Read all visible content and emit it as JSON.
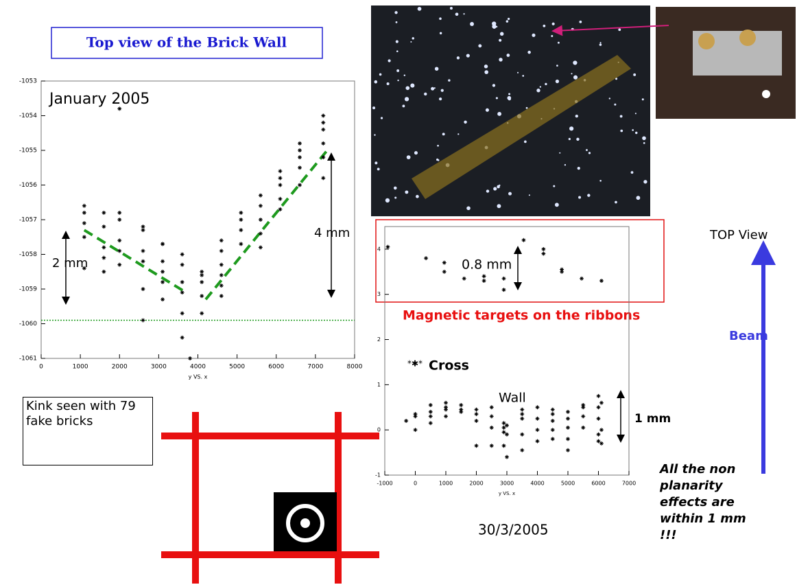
{
  "notes": {
    "title": "Top view of the Brick Wall",
    "two_mm": "2 mm",
    "four_mm": "4 mm",
    "zero_eight_mm": "0.8 mm",
    "magnetic": "Magnetic targets on the ribbons",
    "cross": "Cross",
    "wall": "Wall",
    "one_mm": "1 mm",
    "top_view": "TOP View",
    "beam": "Beam",
    "conclusion": "All the non planarity effects are within 1 mm !!!",
    "kink": "Kink seen with 79 fake bricks",
    "date": "30/3/2005"
  },
  "chart_data": [
    {
      "type": "scatter",
      "title": "January 2005",
      "x_label": "y VS. x",
      "color": "#000000",
      "x": [
        1100,
        1100,
        1100,
        1100,
        1100,
        1600,
        1600,
        1600,
        1600,
        1600,
        2000,
        2000,
        2000,
        2000,
        2000,
        2000,
        2600,
        2600,
        2600,
        2600,
        2600,
        2600,
        3100,
        3100,
        3100,
        3100,
        3100,
        3100,
        3600,
        3600,
        3600,
        3600,
        3600,
        3600,
        4100,
        4100,
        4100,
        4100,
        4100,
        4600,
        4600,
        4600,
        4600,
        4600,
        4600,
        5100,
        5100,
        5100,
        5100,
        5600,
        5600,
        5600,
        5600,
        5600,
        6100,
        6100,
        6100,
        6100,
        6100,
        6600,
        6600,
        6600,
        6600,
        6600,
        7200,
        7200,
        7200,
        7200,
        7200,
        7200,
        3800
      ],
      "values": [
        -1056.6,
        -1056.8,
        -1057.1,
        -1057.5,
        -1058.4,
        -1056.8,
        -1057.2,
        -1057.8,
        -1058.1,
        -1058.5,
        -1053.8,
        -1056.8,
        -1057.0,
        -1057.6,
        -1057.9,
        -1058.3,
        -1057.2,
        -1057.3,
        -1057.9,
        -1058.2,
        -1059.0,
        -1059.9,
        -1057.7,
        -1057.7,
        -1058.2,
        -1058.5,
        -1058.8,
        -1059.3,
        -1058.0,
        -1058.3,
        -1058.8,
        -1059.1,
        -1059.7,
        -1060.4,
        -1058.5,
        -1058.6,
        -1058.8,
        -1059.2,
        -1059.7,
        -1057.6,
        -1057.9,
        -1058.3,
        -1058.6,
        -1058.9,
        -1059.2,
        -1056.8,
        -1057.0,
        -1057.3,
        -1057.7,
        -1056.3,
        -1056.6,
        -1057.0,
        -1057.4,
        -1057.8,
        -1055.6,
        -1055.8,
        -1056.0,
        -1056.4,
        -1056.7,
        -1054.8,
        -1055.0,
        -1055.2,
        -1055.5,
        -1056.0,
        -1054.0,
        -1054.2,
        -1054.4,
        -1054.8,
        -1055.2,
        -1055.8,
        -1061.0
      ],
      "fit_lines": [
        {
          "x": [
            1100,
            3700
          ],
          "values": [
            -1057.3,
            -1059.1
          ]
        },
        {
          "x": [
            4200,
            7300
          ],
          "values": [
            -1059.3,
            -1055.0
          ]
        }
      ],
      "fit_color": "#1e9a1e",
      "reference_line": -1059.9,
      "reference_color": "#1e9a1e",
      "xlim": [
        0,
        8000
      ],
      "ylim": [
        -1061,
        -1053
      ],
      "xticks": [
        0,
        1000,
        2000,
        3000,
        4000,
        5000,
        6000,
        7000,
        8000
      ],
      "yticks": [
        -1061,
        -1060,
        -1059,
        -1058,
        -1057,
        -1056,
        -1055,
        -1054,
        -1053
      ]
    },
    {
      "type": "scatter",
      "x_label": "y VS. x",
      "color": "#000000",
      "x": [
        -900,
        350,
        950,
        950,
        1600,
        2250,
        2250,
        2900,
        2900,
        3550,
        4200,
        4200,
        4800,
        4800,
        5450,
        6100,
        -300,
        0,
        0,
        0,
        500,
        500,
        500,
        500,
        1000,
        1000,
        1000,
        1000,
        1500,
        1500,
        1500,
        2000,
        2000,
        2000,
        2000,
        2500,
        2500,
        2500,
        2500,
        2900,
        2900,
        2900,
        2900,
        3000,
        3000,
        3000,
        3500,
        3500,
        3500,
        3500,
        3500,
        4000,
        4000,
        4000,
        4000,
        4500,
        4500,
        4500,
        4500,
        4500,
        5000,
        5000,
        5000,
        5000,
        5000,
        5500,
        5500,
        5500,
        5500,
        6000,
        6000,
        6000,
        6000,
        6000,
        6100,
        6100,
        6100
      ],
      "values": [
        4.05,
        3.8,
        3.7,
        3.5,
        3.35,
        3.3,
        3.4,
        3.35,
        3.1,
        4.2,
        4.0,
        3.9,
        3.55,
        3.5,
        3.35,
        3.3,
        0.2,
        0.35,
        0.3,
        0.0,
        0.55,
        0.4,
        0.3,
        0.15,
        0.6,
        0.5,
        0.45,
        0.3,
        0.55,
        0.45,
        0.4,
        0.45,
        0.35,
        0.2,
        -0.35,
        0.5,
        0.3,
        0.05,
        -0.35,
        0.15,
        0.05,
        -0.05,
        -0.35,
        0.1,
        -0.1,
        -0.6,
        0.45,
        0.35,
        0.25,
        -0.1,
        -0.45,
        0.5,
        0.25,
        0.0,
        -0.25,
        0.45,
        0.35,
        0.2,
        0.0,
        -0.2,
        0.4,
        0.25,
        0.05,
        -0.2,
        -0.45,
        0.55,
        0.5,
        0.3,
        0.05,
        0.75,
        0.5,
        0.25,
        -0.1,
        -0.25,
        0.6,
        0.0,
        -0.3
      ],
      "xlim": [
        -1000,
        7000
      ],
      "ylim": [
        -1,
        4.5
      ],
      "xticks": [
        -1000,
        0,
        1000,
        2000,
        3000,
        4000,
        5000,
        6000,
        7000
      ],
      "yticks": [
        -1,
        0,
        1,
        2,
        3,
        4
      ]
    }
  ]
}
